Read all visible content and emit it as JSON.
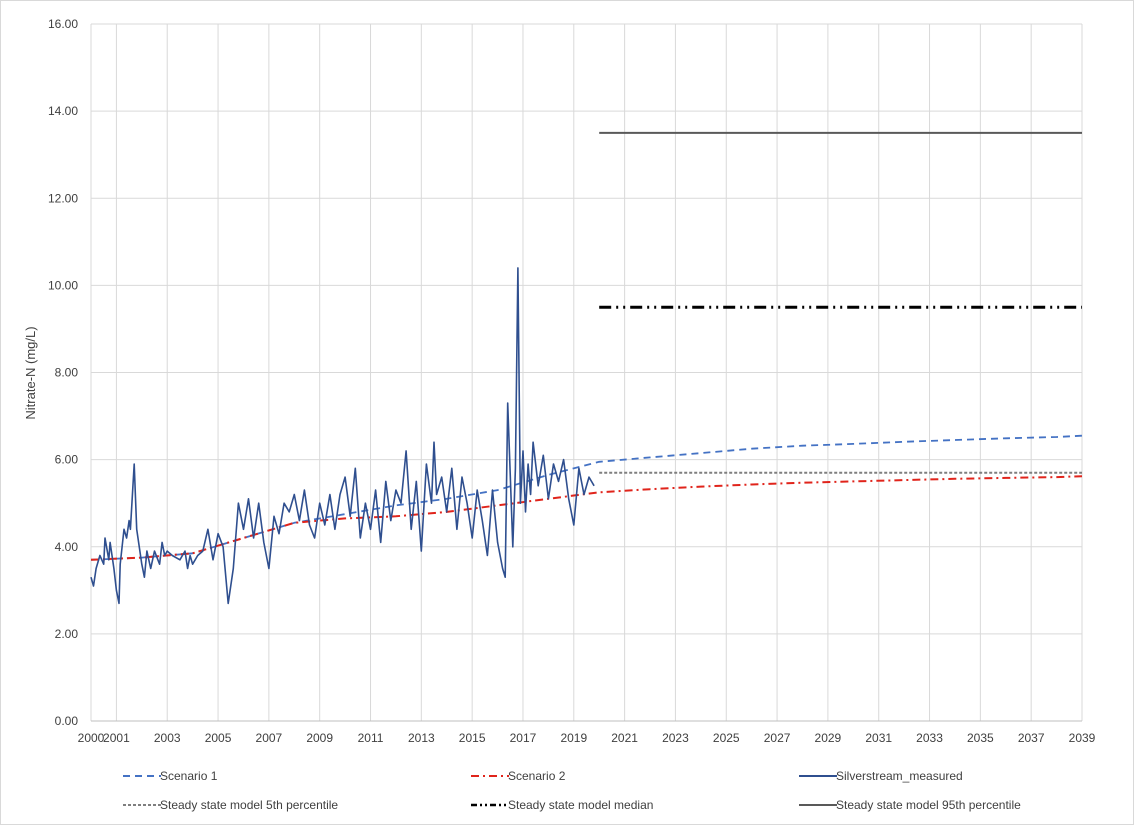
{
  "chart_data": {
    "type": "line",
    "title": "",
    "xlabel": "",
    "ylabel": "Nitrate-N (mg/L)",
    "xlim": [
      2000,
      2039
    ],
    "ylim": [
      0,
      16
    ],
    "grid": true,
    "legend_position": "bottom",
    "x_ticks": [
      "2000",
      "2001",
      "2003",
      "2005",
      "2007",
      "2009",
      "2011",
      "2013",
      "2015",
      "2017",
      "2019",
      "2021",
      "2023",
      "2025",
      "2027",
      "2029",
      "2031",
      "2033",
      "2035",
      "2037",
      "2039"
    ],
    "y_ticks": [
      "0.00",
      "2.00",
      "4.00",
      "6.00",
      "8.00",
      "10.00",
      "12.00",
      "14.00",
      "16.00"
    ],
    "series": [
      {
        "name": "Scenario 1",
        "color": "#4472c4",
        "style": "dashed",
        "x": [
          2000,
          2002,
          2004,
          2006,
          2008,
          2010,
          2012,
          2014,
          2016,
          2018,
          2020,
          2022,
          2024,
          2026,
          2028,
          2030,
          2032,
          2034,
          2036,
          2038,
          2039
        ],
        "y": [
          3.7,
          3.75,
          3.85,
          4.2,
          4.55,
          4.75,
          4.95,
          5.1,
          5.3,
          5.65,
          5.95,
          6.05,
          6.15,
          6.25,
          6.32,
          6.36,
          6.41,
          6.45,
          6.49,
          6.52,
          6.55
        ]
      },
      {
        "name": "Scenario 2",
        "color": "#e0241b",
        "style": "dashdot",
        "x": [
          2000,
          2002,
          2004,
          2006,
          2008,
          2010,
          2012,
          2014,
          2016,
          2018,
          2020,
          2022,
          2024,
          2026,
          2028,
          2030,
          2032,
          2034,
          2036,
          2038,
          2039
        ],
        "y": [
          3.7,
          3.75,
          3.85,
          4.2,
          4.55,
          4.65,
          4.7,
          4.8,
          4.95,
          5.1,
          5.25,
          5.32,
          5.38,
          5.43,
          5.47,
          5.5,
          5.53,
          5.56,
          5.58,
          5.6,
          5.62
        ]
      },
      {
        "name": "Silverstream_measured",
        "color": "#2f4f8f",
        "style": "solid",
        "x": [
          2000.0,
          2000.1,
          2000.2,
          2000.35,
          2000.5,
          2000.55,
          2000.7,
          2000.75,
          2000.9,
          2001.0,
          2001.1,
          2001.15,
          2001.3,
          2001.4,
          2001.5,
          2001.55,
          2001.7,
          2001.8,
          2002.0,
          2002.1,
          2002.2,
          2002.35,
          2002.5,
          2002.7,
          2002.8,
          2002.9,
          2003.0,
          2003.2,
          2003.5,
          2003.7,
          2003.8,
          2003.9,
          2004.0,
          2004.2,
          2004.4,
          2004.6,
          2004.8,
          2005.0,
          2005.2,
          2005.4,
          2005.6,
          2005.8,
          2006.0,
          2006.2,
          2006.4,
          2006.6,
          2006.8,
          2007.0,
          2007.2,
          2007.4,
          2007.6,
          2007.8,
          2008.0,
          2008.2,
          2008.4,
          2008.6,
          2008.8,
          2009.0,
          2009.2,
          2009.4,
          2009.6,
          2009.8,
          2010.0,
          2010.2,
          2010.4,
          2010.6,
          2010.8,
          2011.0,
          2011.2,
          2011.4,
          2011.6,
          2011.8,
          2012.0,
          2012.2,
          2012.4,
          2012.6,
          2012.8,
          2013.0,
          2013.2,
          2013.4,
          2013.5,
          2013.6,
          2013.8,
          2014.0,
          2014.2,
          2014.4,
          2014.6,
          2014.8,
          2015.0,
          2015.2,
          2015.4,
          2015.6,
          2015.8,
          2016.0,
          2016.2,
          2016.3,
          2016.4,
          2016.6,
          2016.7,
          2016.8,
          2016.9,
          2017.0,
          2017.1,
          2017.2,
          2017.3,
          2017.4,
          2017.6,
          2017.8,
          2018.0,
          2018.2,
          2018.4,
          2018.6,
          2018.8,
          2019.0,
          2019.2,
          2019.4,
          2019.6,
          2019.8
        ],
        "y": [
          3.3,
          3.1,
          3.5,
          3.8,
          3.6,
          4.2,
          3.7,
          4.1,
          3.5,
          3.0,
          2.7,
          3.6,
          4.4,
          4.2,
          4.6,
          4.4,
          5.9,
          4.4,
          3.6,
          3.3,
          3.9,
          3.5,
          3.9,
          3.6,
          4.1,
          3.8,
          3.9,
          3.8,
          3.7,
          3.9,
          3.5,
          3.8,
          3.6,
          3.8,
          3.9,
          4.4,
          3.7,
          4.3,
          4.0,
          2.7,
          3.5,
          5.0,
          4.4,
          5.1,
          4.2,
          5.0,
          4.1,
          3.5,
          4.7,
          4.3,
          5.0,
          4.8,
          5.2,
          4.6,
          5.3,
          4.5,
          4.2,
          5.0,
          4.5,
          5.2,
          4.4,
          5.2,
          5.6,
          4.7,
          5.8,
          4.2,
          5.0,
          4.4,
          5.3,
          4.1,
          5.5,
          4.6,
          5.3,
          5.0,
          6.2,
          4.4,
          5.5,
          3.9,
          5.9,
          5.0,
          6.4,
          5.2,
          5.6,
          4.8,
          5.8,
          4.4,
          5.6,
          5.0,
          4.2,
          5.3,
          4.6,
          3.8,
          5.3,
          4.1,
          3.5,
          3.3,
          7.3,
          4.0,
          5.8,
          10.4,
          5.0,
          6.2,
          4.8,
          5.9,
          5.2,
          6.4,
          5.4,
          6.1,
          5.1,
          5.9,
          5.5,
          6.0,
          5.1,
          4.5,
          5.8,
          5.2,
          5.6,
          5.4
        ]
      },
      {
        "name": "Steady state model 5th percentile",
        "color": "#7f7f7f",
        "style": "dotted",
        "x": [
          2020,
          2039
        ],
        "y": [
          5.7,
          5.7
        ]
      },
      {
        "name": "Steady state model median",
        "color": "#000000",
        "style": "dashdotdot",
        "x": [
          2020,
          2039
        ],
        "y": [
          9.5,
          9.5
        ]
      },
      {
        "name": "Steady state model 95th percentile",
        "color": "#595959",
        "style": "solid",
        "x": [
          2020,
          2039
        ],
        "y": [
          13.5,
          13.5
        ]
      }
    ]
  }
}
